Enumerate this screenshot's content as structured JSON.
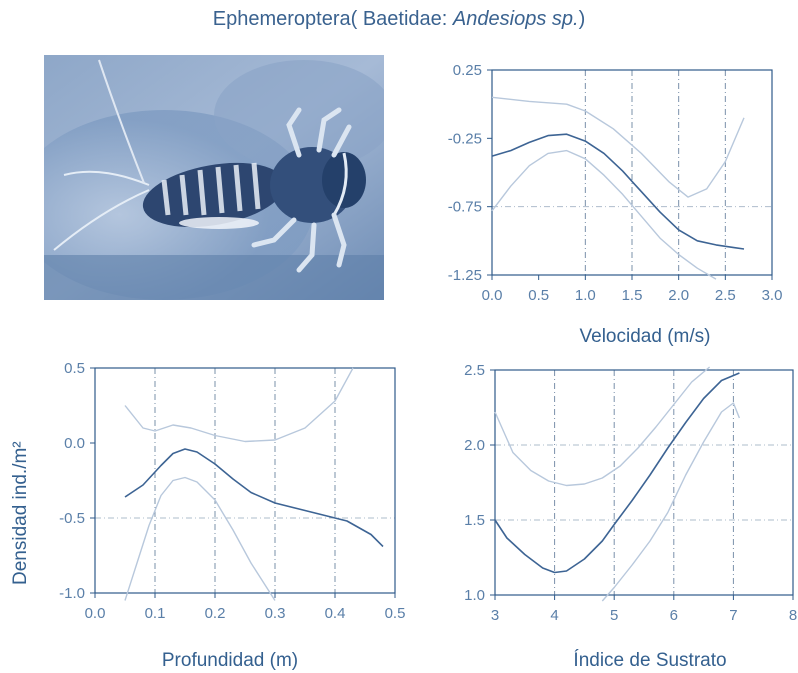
{
  "title": {
    "prefix": "Ephemeroptera( Baetidae: ",
    "italic": "Andesiops sp.",
    "suffix": ")"
  },
  "photo": {
    "subject": "mayfly-nymph"
  },
  "colors": {
    "main": "#3d6494",
    "ci": "#b8c8dc",
    "grid": "#7a90aa",
    "axis": "#2f5a8a"
  },
  "ylabel": "Densidad ind./m²",
  "chart_data": [
    {
      "type": "line",
      "xlabel": "Velocidad (m/s)",
      "ylabel": "",
      "xlim": [
        0,
        3
      ],
      "ylim": [
        -1.25,
        0.25
      ],
      "xticks": [
        "0.0",
        "0.5",
        "1.0",
        "1.5",
        "2.0",
        "2.5",
        "3.0"
      ],
      "yticks": [
        "0.25",
        "-0.25",
        "-0.75",
        "-1.25"
      ],
      "vgrid": [
        1.0,
        1.5,
        2.0,
        2.5
      ],
      "hgrid": [
        -0.75
      ],
      "series": [
        {
          "role": "fit",
          "x": [
            0,
            0.2,
            0.4,
            0.6,
            0.8,
            1.0,
            1.2,
            1.4,
            1.6,
            1.8,
            2.0,
            2.2,
            2.4,
            2.6,
            2.7
          ],
          "y": [
            -0.38,
            -0.34,
            -0.28,
            -0.23,
            -0.22,
            -0.27,
            -0.36,
            -0.49,
            -0.64,
            -0.79,
            -0.92,
            -1.0,
            -1.03,
            -1.05,
            -1.06
          ]
        },
        {
          "role": "upper",
          "x": [
            0,
            0.4,
            0.8,
            1.0,
            1.3,
            1.6,
            1.9,
            2.1,
            2.3,
            2.5,
            2.7
          ],
          "y": [
            0.05,
            0.02,
            0.0,
            -0.05,
            -0.18,
            -0.36,
            -0.57,
            -0.68,
            -0.62,
            -0.42,
            -0.1
          ]
        },
        {
          "role": "lower",
          "x": [
            0,
            0.2,
            0.4,
            0.6,
            0.8,
            1.0,
            1.2,
            1.4,
            1.6,
            1.8,
            2.0,
            2.2,
            2.4
          ],
          "y": [
            -0.78,
            -0.6,
            -0.45,
            -0.36,
            -0.34,
            -0.4,
            -0.52,
            -0.66,
            -0.82,
            -0.98,
            -1.1,
            -1.2,
            -1.28
          ]
        }
      ]
    },
    {
      "type": "line",
      "xlabel": "Profundidad (m)",
      "ylabel": "Densidad ind./m²",
      "xlim": [
        0,
        0.5
      ],
      "ylim": [
        -1.0,
        0.5
      ],
      "xticks": [
        "0.0",
        "0.1",
        "0.2",
        "0.3",
        "0.4",
        "0.5"
      ],
      "yticks": [
        "0.5",
        "0.0",
        "-0.5",
        "-1.0"
      ],
      "vgrid": [
        0.1,
        0.2,
        0.3,
        0.4
      ],
      "hgrid": [
        -0.5
      ],
      "series": [
        {
          "role": "fit",
          "x": [
            0.05,
            0.08,
            0.11,
            0.13,
            0.15,
            0.17,
            0.2,
            0.23,
            0.26,
            0.3,
            0.34,
            0.38,
            0.42,
            0.46,
            0.48
          ],
          "y": [
            -0.36,
            -0.28,
            -0.15,
            -0.07,
            -0.04,
            -0.06,
            -0.14,
            -0.24,
            -0.33,
            -0.4,
            -0.44,
            -0.48,
            -0.52,
            -0.61,
            -0.69
          ]
        },
        {
          "role": "upper",
          "x": [
            0.05,
            0.08,
            0.1,
            0.13,
            0.16,
            0.2,
            0.25,
            0.3,
            0.35,
            0.4,
            0.43
          ],
          "y": [
            0.25,
            0.1,
            0.08,
            0.12,
            0.1,
            0.05,
            0.01,
            0.02,
            0.1,
            0.28,
            0.5
          ]
        },
        {
          "role": "lower",
          "x": [
            0.05,
            0.07,
            0.09,
            0.11,
            0.13,
            0.15,
            0.17,
            0.2,
            0.23,
            0.26,
            0.3
          ],
          "y": [
            -1.05,
            -0.8,
            -0.55,
            -0.35,
            -0.25,
            -0.23,
            -0.26,
            -0.38,
            -0.58,
            -0.8,
            -1.05
          ]
        }
      ]
    },
    {
      "type": "line",
      "xlabel": "Índice de Sustrato",
      "ylabel": "",
      "xlim": [
        3,
        8
      ],
      "ylim": [
        1.0,
        2.5
      ],
      "xticks": [
        "3",
        "4",
        "5",
        "6",
        "7",
        "8"
      ],
      "yticks": [
        "2.5",
        "2.0",
        "1.5",
        "1.0"
      ],
      "vgrid": [
        4,
        5,
        6,
        7
      ],
      "hgrid": [
        1.5,
        2.0
      ],
      "series": [
        {
          "role": "fit",
          "x": [
            3.0,
            3.2,
            3.5,
            3.8,
            4.0,
            4.2,
            4.5,
            4.8,
            5.0,
            5.3,
            5.6,
            5.9,
            6.2,
            6.5,
            6.8,
            7.1
          ],
          "y": [
            1.5,
            1.38,
            1.27,
            1.18,
            1.15,
            1.16,
            1.24,
            1.36,
            1.47,
            1.63,
            1.8,
            1.98,
            2.15,
            2.31,
            2.43,
            2.48
          ]
        },
        {
          "role": "upper",
          "x": [
            3.0,
            3.3,
            3.6,
            3.9,
            4.2,
            4.5,
            4.8,
            5.1,
            5.4,
            5.7,
            6.0,
            6.3,
            6.6
          ],
          "y": [
            2.22,
            1.95,
            1.83,
            1.76,
            1.73,
            1.74,
            1.78,
            1.86,
            1.98,
            2.12,
            2.27,
            2.42,
            2.52
          ]
        },
        {
          "role": "lower",
          "x": [
            4.8,
            5.0,
            5.3,
            5.6,
            5.9,
            6.2,
            6.5,
            6.8,
            7.0,
            7.1
          ],
          "y": [
            0.96,
            1.05,
            1.2,
            1.36,
            1.55,
            1.8,
            2.02,
            2.22,
            2.28,
            2.18
          ]
        }
      ]
    }
  ]
}
